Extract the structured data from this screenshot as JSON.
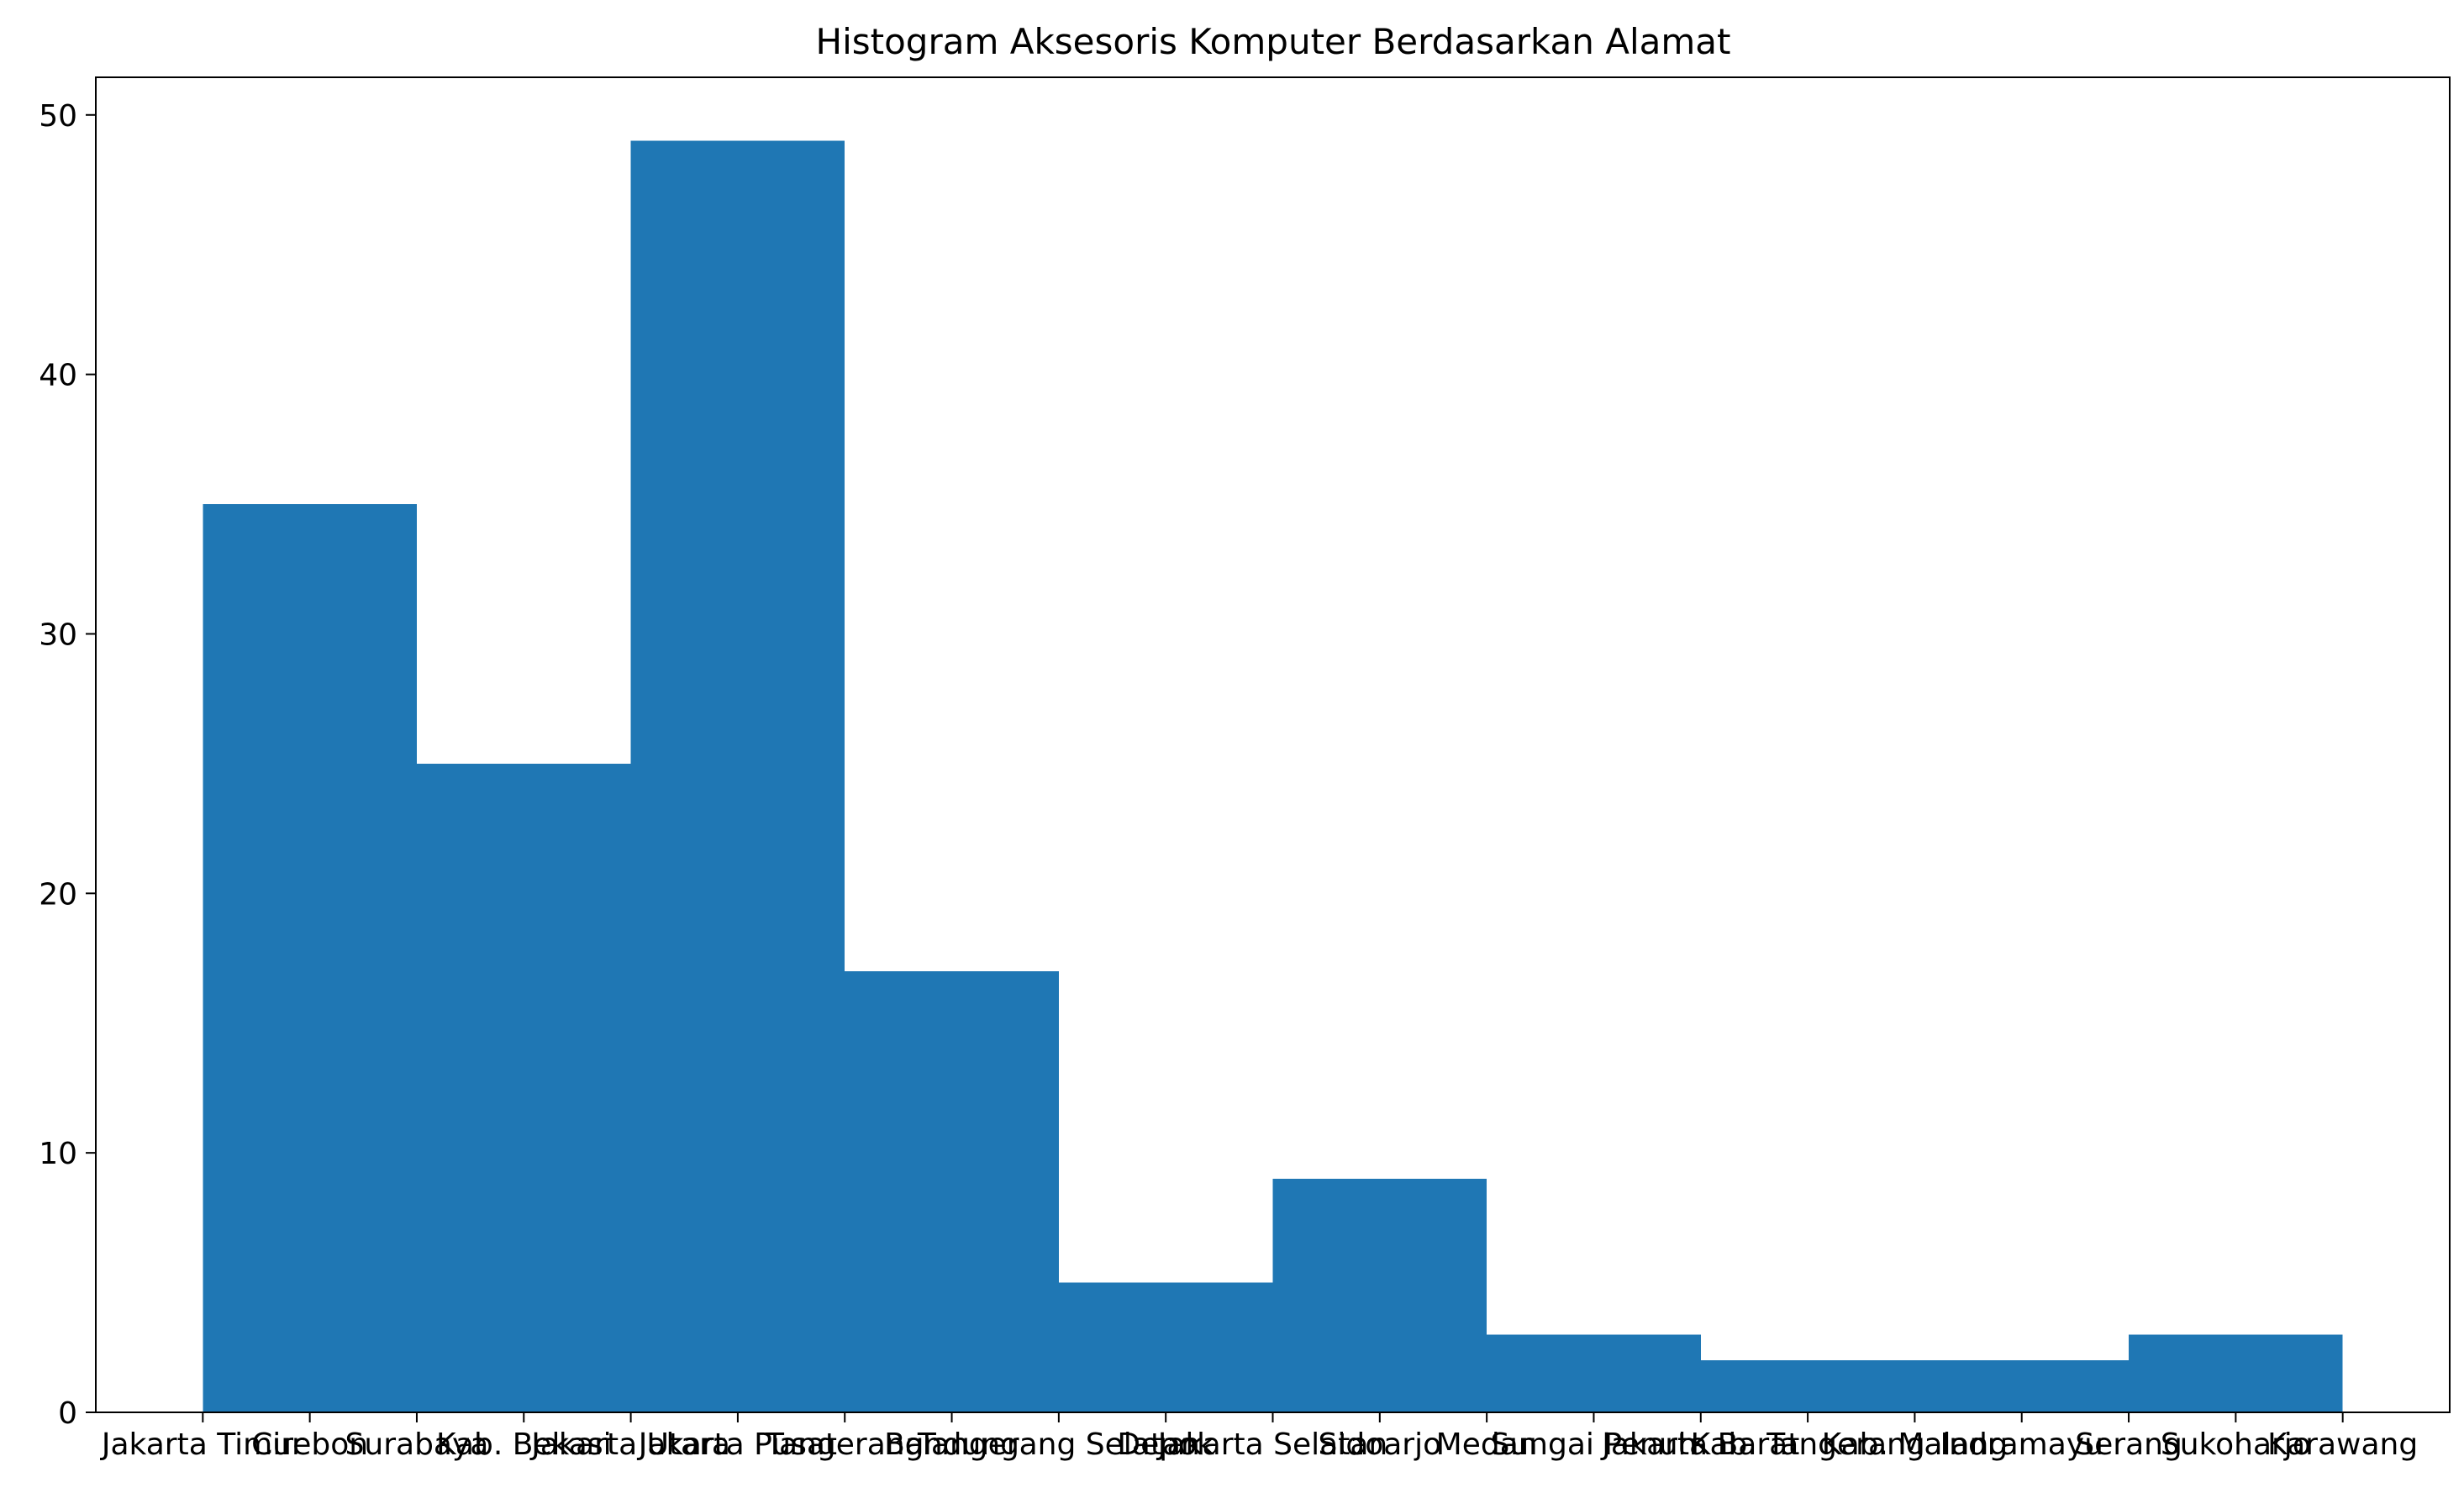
{
  "chart_data": {
    "type": "bar",
    "title": "Histogram Aksesoris Komputer Berdasarkan Alamat",
    "xlabel": "",
    "ylabel": "",
    "ylim": [
      0,
      51.45
    ],
    "yticks": [
      0,
      10,
      20,
      30,
      40,
      50
    ],
    "grid": false,
    "legend": "none",
    "colors": {
      "bar": "#1f77b4",
      "axis": "#000000",
      "background": "#ffffff"
    },
    "categories": [
      "Jakarta Timur",
      "Cirebon",
      "Surabaya",
      "Kab. Bekasi",
      "Jakarta Utara",
      "Jakarta Pusat",
      "Tangerang",
      "Bandung",
      "Tangerang Selatan",
      "Depok",
      "Jakarta Selatan",
      "Sidoarjo",
      "Medan",
      "Sungai Penuh",
      "Jakarta Barat",
      "Kab. Tangerang",
      "Kab. Malang",
      "Indramayu",
      "Serang",
      "Sukoharjo",
      "Karawang"
    ],
    "bins": [
      {
        "x0": 0,
        "x1": 2,
        "count": 35
      },
      {
        "x0": 2,
        "x1": 4,
        "count": 25
      },
      {
        "x0": 4,
        "x1": 6,
        "count": 49
      },
      {
        "x0": 6,
        "x1": 8,
        "count": 17
      },
      {
        "x0": 8,
        "x1": 10,
        "count": 5
      },
      {
        "x0": 10,
        "x1": 12,
        "count": 9
      },
      {
        "x0": 12,
        "x1": 14,
        "count": 3
      },
      {
        "x0": 14,
        "x1": 16,
        "count": 2
      },
      {
        "x0": 16,
        "x1": 18,
        "count": 2
      },
      {
        "x0": 18,
        "x1": 20,
        "count": 3
      }
    ]
  }
}
